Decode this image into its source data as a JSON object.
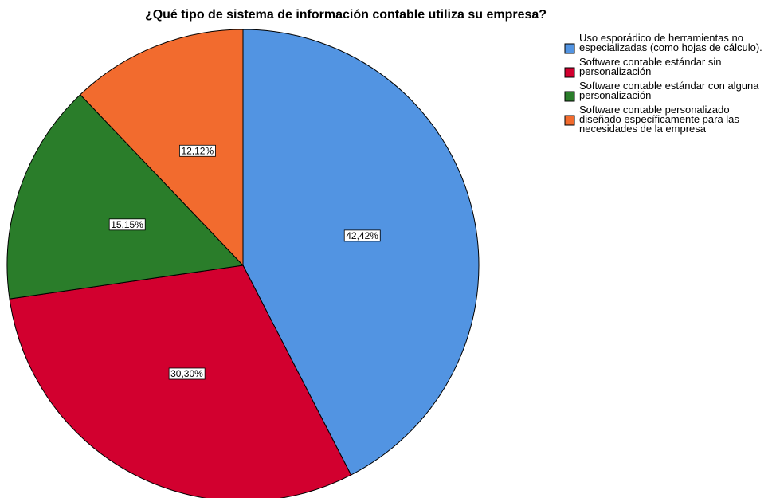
{
  "chart_data": {
    "type": "pie",
    "title": "¿Qué tipo de sistema de información contable utiliza su empresa?",
    "categories": [
      "Uso esporádico de herramientas no especializadas (como hojas de cálculo).",
      "Software contable estándar sin personalización",
      "Software contable estándar con alguna personalización",
      "Software contable personalizado diseñado específicamente para las necesidades de la empresa"
    ],
    "values": [
      42.42,
      30.3,
      15.15,
      12.12
    ],
    "value_labels": [
      "42,42%",
      "30,30%",
      "15,15%",
      "12,12%"
    ],
    "colors": [
      "#5294e2",
      "#d2002f",
      "#2a7d2a",
      "#f26b2e"
    ],
    "legend": "right"
  }
}
